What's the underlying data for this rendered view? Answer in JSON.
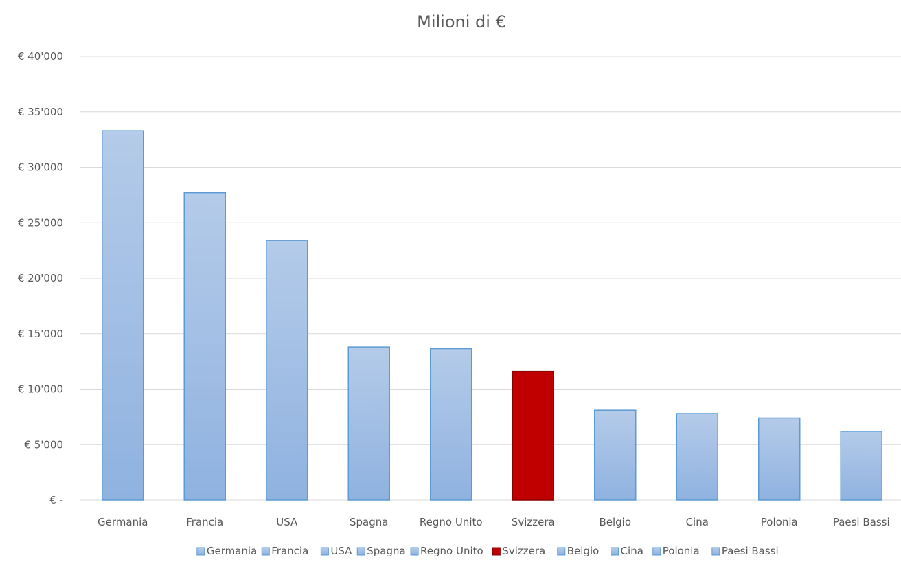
{
  "chart_data": {
    "type": "bar",
    "title": "Milioni di €",
    "xlabel": "",
    "ylabel": "",
    "categories": [
      "Germania",
      "Francia",
      "USA",
      "Spagna",
      "Regno Unito",
      "Svizzera",
      "Belgio",
      "Cina",
      "Polonia",
      "Paesi Bassi"
    ],
    "values": [
      33300,
      27700,
      23400,
      13800,
      13650,
      11600,
      8100,
      7800,
      7400,
      6200
    ],
    "ylim": [
      0,
      40000
    ],
    "y_ticks": [
      0,
      5000,
      10000,
      15000,
      20000,
      25000,
      30000,
      35000,
      40000
    ],
    "y_tick_labels": [
      "€ -",
      "€ 5'000",
      "€ 10'000",
      "€ 15'000",
      "€ 20'000",
      "€ 25'000",
      "€ 30'000",
      "€ 35'000",
      "€ 40'000"
    ],
    "grid": true,
    "legend": {
      "position": "bottom",
      "entries": [
        "Germania",
        "Francia",
        "USA",
        "Spagna",
        "Regno Unito",
        "Svizzera",
        "Belgio",
        "Cina",
        "Polonia",
        "Paesi Bassi"
      ]
    },
    "colors": {
      "default_bar_top": "#b4cbe9",
      "default_bar_bottom": "#8fb2e0",
      "default_bar_stroke": "#5b9bd5",
      "highlight_bar": "#c00000",
      "highlight_stroke": "#8b0000",
      "grid": "#d9d9d9",
      "text": "#595959"
    },
    "highlight": "Svizzera"
  }
}
